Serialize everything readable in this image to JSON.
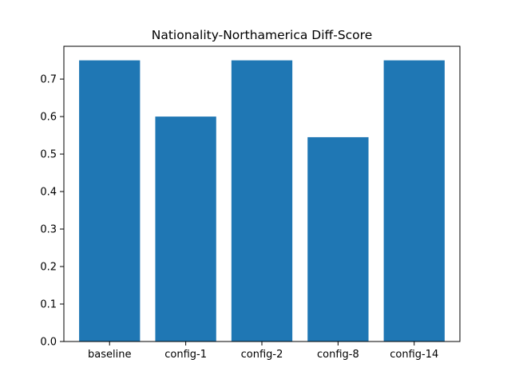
{
  "chart_data": {
    "type": "bar",
    "title": "Nationality-Northamerica Diff-Score",
    "xlabel": "",
    "ylabel": "",
    "categories": [
      "baseline",
      "config-1",
      "config-2",
      "config-8",
      "config-14"
    ],
    "values": [
      0.75,
      0.6,
      0.75,
      0.545,
      0.75
    ],
    "ylim": [
      0,
      0.7875
    ],
    "yticks": [
      0.0,
      0.1,
      0.2,
      0.3,
      0.4,
      0.5,
      0.6,
      0.7
    ],
    "ytick_labels": [
      "0.0",
      "0.1",
      "0.2",
      "0.3",
      "0.4",
      "0.5",
      "0.6",
      "0.7"
    ],
    "bar_color": "#1f77b4",
    "grid": false,
    "legend": null
  }
}
